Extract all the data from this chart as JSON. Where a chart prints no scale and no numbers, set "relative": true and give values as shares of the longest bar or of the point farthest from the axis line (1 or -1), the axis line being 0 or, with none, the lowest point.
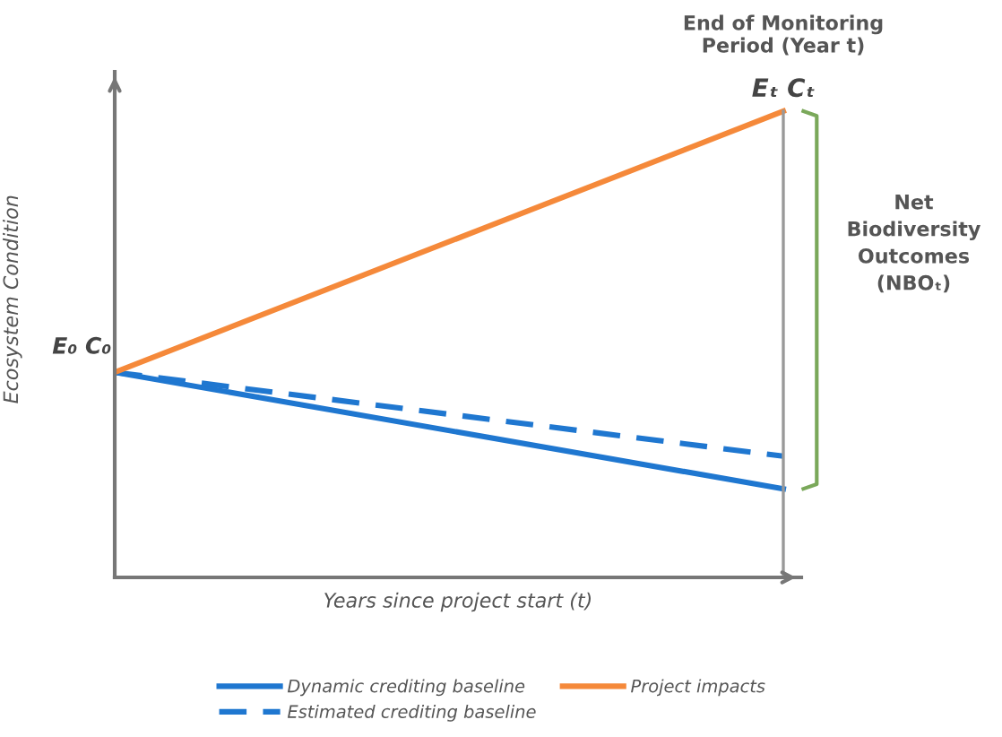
{
  "chart_data": {
    "type": "line",
    "relative": true,
    "xlabel": "Years since project start (t)",
    "ylabel": "Ecosystem Condition",
    "categories": [
      null,
      null
    ],
    "series": [
      {
        "name": "Dynamic crediting baseline",
        "color": "#1f77d0",
        "values": [
          0.44,
          0.19
        ],
        "line_style": "solid"
      },
      {
        "name": "Estimated crediting baseline",
        "color": "#1f77d0",
        "values": [
          0.44,
          0.26
        ],
        "line_style": "dashed"
      },
      {
        "name": "Project impacts",
        "color": "#f5893a",
        "values": [
          0.44,
          1
        ],
        "line_style": "solid"
      }
    ],
    "annotations": [
      "E₀ C₀",
      "Eₜ Cₜ",
      "Net Biodiversity Outcomes (NBOₜ)",
      "End of Monitoring Period (Year t)"
    ],
    "legend": "bottom",
    "marker": "none",
    "grid": false
  }
}
